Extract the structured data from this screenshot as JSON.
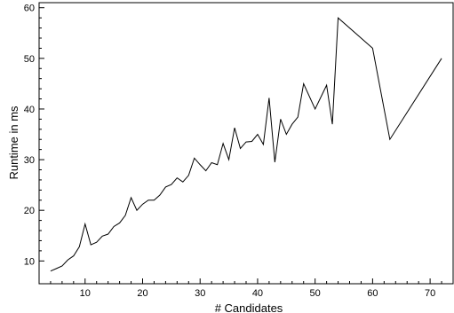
{
  "chart_data": {
    "type": "line",
    "title": "",
    "xlabel": "# Candidates",
    "ylabel": "Runtime in ms",
    "xlim": [
      2,
      74
    ],
    "ylim": [
      5.5,
      61
    ],
    "xticks": [
      10,
      20,
      30,
      40,
      50,
      60,
      70
    ],
    "yticks": [
      10,
      20,
      30,
      40,
      50,
      60
    ],
    "grid": false,
    "legend": "none",
    "line_color": "#000000",
    "series": [
      {
        "x": [
          4,
          5,
          6,
          7,
          8,
          9,
          10,
          11,
          12,
          13,
          14,
          15,
          16,
          17,
          18,
          19,
          20,
          21,
          22,
          23,
          24,
          25,
          26,
          27,
          28,
          29,
          30,
          31,
          32,
          33,
          34,
          35,
          36,
          37,
          38,
          39,
          40,
          41,
          42,
          43,
          44,
          45,
          46,
          47,
          48,
          50,
          52,
          53,
          54,
          60,
          63,
          72
        ],
        "y": [
          8,
          8.5,
          9,
          10.2,
          11,
          12.8,
          17.3,
          13.2,
          13.7,
          14.9,
          15.3,
          16.8,
          17.5,
          19,
          22.5,
          20,
          21.2,
          22,
          22,
          23,
          24.6,
          25.1,
          26.4,
          25.6,
          26.9,
          30.3,
          29,
          27.8,
          29.4,
          29,
          33.2,
          30,
          36.3,
          32.2,
          33.5,
          33.6,
          35,
          33,
          42.2,
          29.5,
          38,
          35,
          37,
          38.4,
          45,
          40,
          44.7,
          37,
          58,
          52,
          34,
          50
        ]
      }
    ]
  }
}
